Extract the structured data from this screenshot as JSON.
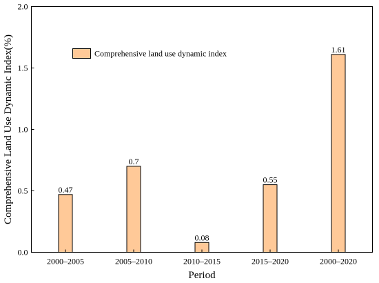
{
  "chart_data": {
    "type": "bar",
    "categories": [
      "2000–2005",
      "2005–2010",
      "2010–2015",
      "2015–2020",
      "2000–2020"
    ],
    "values": [
      0.47,
      0.7,
      0.08,
      0.55,
      1.61
    ],
    "data_labels": [
      "0.47",
      "0.7",
      "0.08",
      "0.55",
      "1.61"
    ],
    "series": [
      {
        "name": "Comprehensive land use dynamic index",
        "values": [
          0.47,
          0.7,
          0.08,
          0.55,
          1.61
        ]
      }
    ],
    "xlabel": "Period",
    "ylabel": "Comprehensive Land Use Dynamic Index(%)",
    "ylim": [
      0,
      2.0
    ],
    "yticks": [
      0.0,
      0.5,
      1.0,
      1.5,
      2.0
    ],
    "ytick_labels": [
      "0.0",
      "0.5",
      "1.0",
      "1.5",
      "2.0"
    ],
    "grid": false,
    "legend_position": "top-left",
    "bar_color": "#FFC998",
    "bar_edge_color": "#000000"
  }
}
